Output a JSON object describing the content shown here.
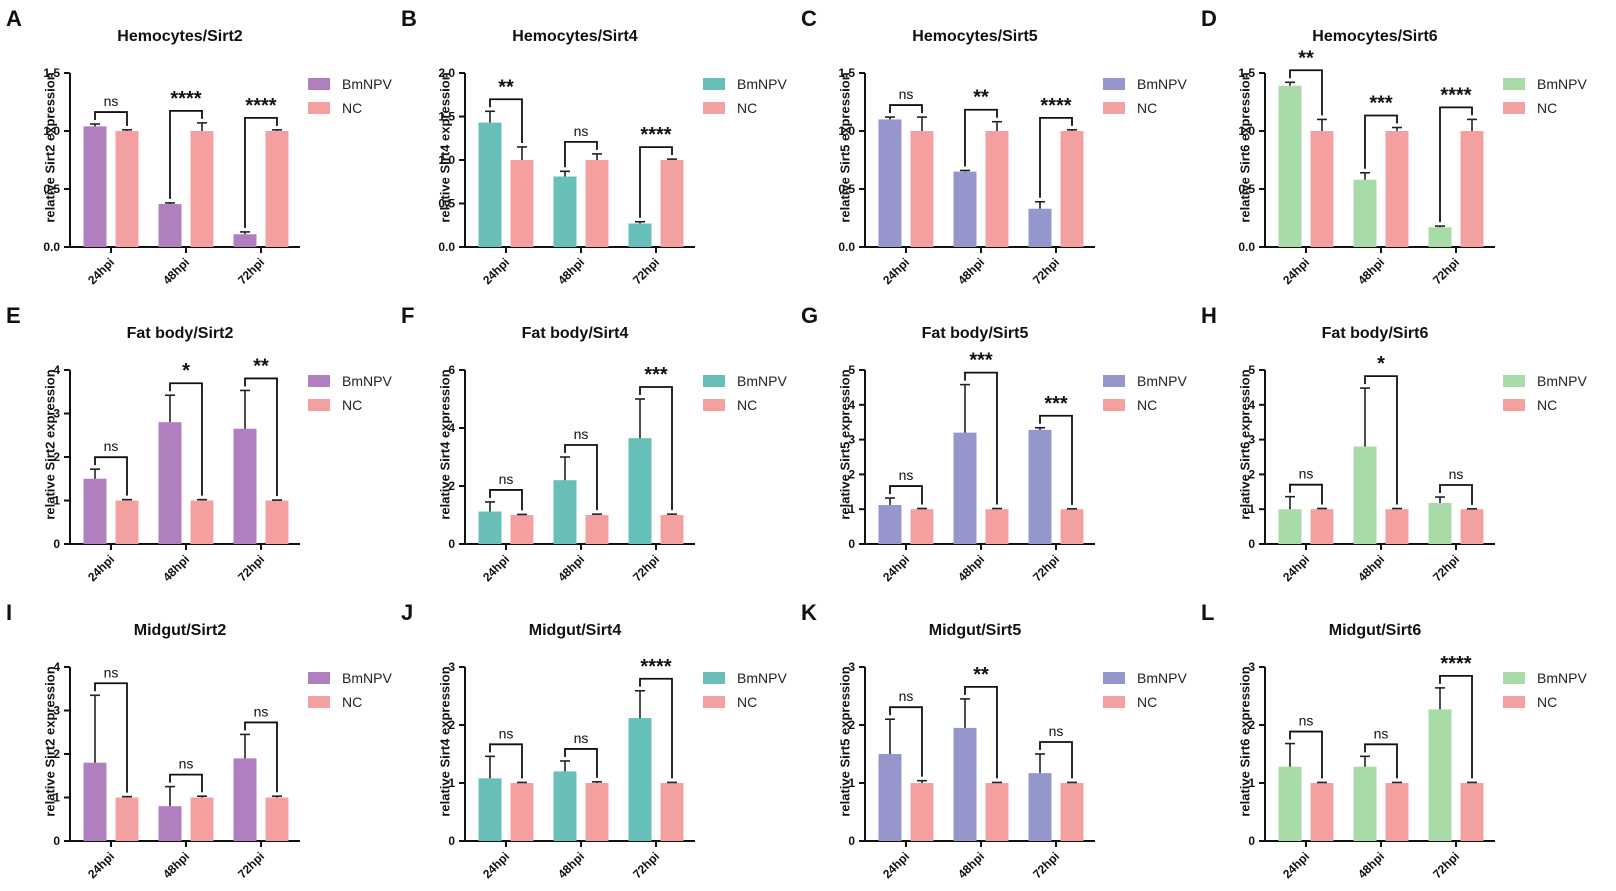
{
  "figure": {
    "legend": [
      "BmNPV",
      "NC"
    ],
    "colors": {
      "Sirt2": "#b17fbf",
      "Sirt4": "#67bfb8",
      "Sirt5": "#9597cc",
      "Sirt6": "#a9dba9",
      "NC": "#f5a0a0"
    }
  },
  "chart_data": [
    {
      "letter": "A",
      "title": "Hemocytes/Sirt2",
      "type": "bar",
      "gene": "Sirt2",
      "ylabel": "relative Sirt2 expression",
      "categories": [
        "24hpi",
        "48hpi",
        "72hpi"
      ],
      "ylim": [
        0,
        1.5
      ],
      "yticks": [
        "0.0",
        "0.5",
        "1.0",
        "1.5"
      ],
      "series": [
        {
          "name": "BmNPV",
          "values": [
            1.04,
            0.37,
            0.11
          ],
          "errors": [
            0.02,
            0.01,
            0.02
          ]
        },
        {
          "name": "NC",
          "values": [
            1.0,
            1.0,
            1.0
          ],
          "errors": [
            0.01,
            0.07,
            0.01
          ]
        }
      ],
      "significance": [
        "ns",
        "****",
        "****"
      ]
    },
    {
      "letter": "B",
      "title": "Hemocytes/Sirt4",
      "type": "bar",
      "gene": "Sirt4",
      "ylabel": "relative Sirt4 expression",
      "categories": [
        "24hpi",
        "48hpi",
        "72hpi"
      ],
      "ylim": [
        0,
        2.0
      ],
      "yticks": [
        "0.0",
        "0.5",
        "1.0",
        "1.5",
        "2.0"
      ],
      "series": [
        {
          "name": "BmNPV",
          "values": [
            1.43,
            0.81,
            0.27
          ],
          "errors": [
            0.13,
            0.06,
            0.02
          ]
        },
        {
          "name": "NC",
          "values": [
            1.0,
            1.0,
            1.0
          ],
          "errors": [
            0.15,
            0.07,
            0.01
          ]
        }
      ],
      "significance": [
        "**",
        "ns",
        "****"
      ]
    },
    {
      "letter": "C",
      "title": "Hemocytes/Sirt5",
      "type": "bar",
      "gene": "Sirt5",
      "ylabel": "relative Sirt5 expression",
      "categories": [
        "24hpi",
        "48hpi",
        "72hpi"
      ],
      "ylim": [
        0,
        1.5
      ],
      "yticks": [
        "0.0",
        "0.5",
        "1.0",
        "1.5"
      ],
      "series": [
        {
          "name": "BmNPV",
          "values": [
            1.1,
            0.65,
            0.33
          ],
          "errors": [
            0.02,
            0.01,
            0.06
          ]
        },
        {
          "name": "NC",
          "values": [
            1.0,
            1.0,
            1.0
          ],
          "errors": [
            0.12,
            0.08,
            0.01
          ]
        }
      ],
      "significance": [
        "ns",
        "**",
        "****"
      ]
    },
    {
      "letter": "D",
      "title": "Hemocytes/Sirt6",
      "type": "bar",
      "gene": "Sirt6",
      "ylabel": "relative Sirt6 expression",
      "categories": [
        "24hpi",
        "48hpi",
        "72hpi"
      ],
      "ylim": [
        0,
        1.5
      ],
      "yticks": [
        "0.0",
        "0.5",
        "1.0",
        "1.5"
      ],
      "series": [
        {
          "name": "BmNPV",
          "values": [
            1.39,
            0.58,
            0.17
          ],
          "errors": [
            0.03,
            0.06,
            0.01
          ]
        },
        {
          "name": "NC",
          "values": [
            1.0,
            1.0,
            1.0
          ],
          "errors": [
            0.1,
            0.03,
            0.1
          ]
        }
      ],
      "significance": [
        "**",
        "***",
        "****"
      ]
    },
    {
      "letter": "E",
      "title": "Fat body/Sirt2",
      "type": "bar",
      "gene": "Sirt2",
      "ylabel": "relative Sirt2 expression",
      "categories": [
        "24hpi",
        "48hpi",
        "72hpi"
      ],
      "ylim": [
        0,
        4
      ],
      "yticks": [
        "0",
        "1",
        "2",
        "3",
        "4"
      ],
      "series": [
        {
          "name": "BmNPV",
          "values": [
            1.5,
            2.8,
            2.65
          ],
          "errors": [
            0.22,
            0.62,
            0.88
          ]
        },
        {
          "name": "NC",
          "values": [
            1.0,
            1.0,
            1.0
          ],
          "errors": [
            0.02,
            0.02,
            0.01
          ]
        }
      ],
      "significance": [
        "ns",
        "*",
        "**"
      ]
    },
    {
      "letter": "F",
      "title": "Fat body/Sirt4",
      "type": "bar",
      "gene": "Sirt4",
      "ylabel": "relative Sirt4 expression",
      "categories": [
        "24hpi",
        "48hpi",
        "72hpi"
      ],
      "ylim": [
        0,
        6
      ],
      "yticks": [
        "0",
        "2",
        "4",
        "6"
      ],
      "series": [
        {
          "name": "BmNPV",
          "values": [
            1.12,
            2.2,
            3.65
          ],
          "errors": [
            0.33,
            0.8,
            1.35
          ]
        },
        {
          "name": "NC",
          "values": [
            1.0,
            1.0,
            1.0
          ],
          "errors": [
            0.02,
            0.03,
            0.03
          ]
        }
      ],
      "significance": [
        "ns",
        "ns",
        "***"
      ]
    },
    {
      "letter": "G",
      "title": "Fat body/Sirt5",
      "type": "bar",
      "gene": "Sirt5",
      "ylabel": "relative Sirt5 expression",
      "categories": [
        "24hpi",
        "48hpi",
        "72hpi"
      ],
      "ylim": [
        0,
        5
      ],
      "yticks": [
        "0",
        "1",
        "2",
        "3",
        "4",
        "5"
      ],
      "series": [
        {
          "name": "BmNPV",
          "values": [
            1.12,
            3.2,
            3.28
          ],
          "errors": [
            0.2,
            1.38,
            0.06
          ]
        },
        {
          "name": "NC",
          "values": [
            1.0,
            1.0,
            1.0
          ],
          "errors": [
            0.02,
            0.02,
            0.01
          ]
        }
      ],
      "significance": [
        "ns",
        "***",
        "***"
      ]
    },
    {
      "letter": "H",
      "title": "Fat body/Sirt6",
      "type": "bar",
      "gene": "Sirt6",
      "ylabel": "relative Sirt6 expression",
      "categories": [
        "24hpi",
        "48hpi",
        "72hpi"
      ],
      "ylim": [
        0,
        5
      ],
      "yticks": [
        "0",
        "1",
        "2",
        "3",
        "4",
        "5"
      ],
      "series": [
        {
          "name": "BmNPV",
          "values": [
            1.0,
            2.8,
            1.18
          ],
          "errors": [
            0.36,
            1.68,
            0.17
          ]
        },
        {
          "name": "NC",
          "values": [
            1.0,
            1.0,
            1.0
          ],
          "errors": [
            0.02,
            0.02,
            0.01
          ]
        }
      ],
      "significance": [
        "ns",
        "*",
        "ns"
      ]
    },
    {
      "letter": "I",
      "title": "Midgut/Sirt2",
      "type": "bar",
      "gene": "Sirt2",
      "ylabel": "relative Sirt2 expression",
      "categories": [
        "24hpi",
        "48hpi",
        "72hpi"
      ],
      "ylim": [
        0,
        4
      ],
      "yticks": [
        "0",
        "1",
        "2",
        "3",
        "4"
      ],
      "series": [
        {
          "name": "BmNPV",
          "values": [
            1.8,
            0.8,
            1.9
          ],
          "errors": [
            1.55,
            0.45,
            0.55
          ]
        },
        {
          "name": "NC",
          "values": [
            1.0,
            1.0,
            1.0
          ],
          "errors": [
            0.02,
            0.03,
            0.03
          ]
        }
      ],
      "significance": [
        "ns",
        "ns",
        "ns"
      ]
    },
    {
      "letter": "J",
      "title": "Midgut/Sirt4",
      "type": "bar",
      "gene": "Sirt4",
      "ylabel": "relative Sirt4 expression",
      "categories": [
        "24hpi",
        "48hpi",
        "72hpi"
      ],
      "ylim": [
        0,
        3
      ],
      "yticks": [
        "0",
        "1",
        "2",
        "3"
      ],
      "series": [
        {
          "name": "BmNPV",
          "values": [
            1.08,
            1.2,
            2.12
          ],
          "errors": [
            0.38,
            0.18,
            0.47
          ]
        },
        {
          "name": "NC",
          "values": [
            1.0,
            1.0,
            1.0
          ],
          "errors": [
            0.01,
            0.02,
            0.01
          ]
        }
      ],
      "significance": [
        "ns",
        "ns",
        "****"
      ]
    },
    {
      "letter": "K",
      "title": "Midgut/Sirt5",
      "type": "bar",
      "gene": "Sirt5",
      "ylabel": "relative Sirt5 expression",
      "categories": [
        "24hpi",
        "48hpi",
        "72hpi"
      ],
      "ylim": [
        0,
        3
      ],
      "yticks": [
        "0",
        "1",
        "2",
        "3"
      ],
      "series": [
        {
          "name": "BmNPV",
          "values": [
            1.5,
            1.95,
            1.17
          ],
          "errors": [
            0.6,
            0.5,
            0.33
          ]
        },
        {
          "name": "NC",
          "values": [
            1.0,
            1.0,
            1.0
          ],
          "errors": [
            0.04,
            0.01,
            0.01
          ]
        }
      ],
      "significance": [
        "ns",
        "**",
        "ns"
      ]
    },
    {
      "letter": "L",
      "title": "Midgut/Sirt6",
      "type": "bar",
      "gene": "Sirt6",
      "ylabel": "relative Sirt6 expression",
      "categories": [
        "24hpi",
        "48hpi",
        "72hpi"
      ],
      "ylim": [
        0,
        3
      ],
      "yticks": [
        "0",
        "1",
        "2",
        "3"
      ],
      "series": [
        {
          "name": "BmNPV",
          "values": [
            1.28,
            1.28,
            2.27
          ],
          "errors": [
            0.4,
            0.18,
            0.37
          ]
        },
        {
          "name": "NC",
          "values": [
            1.0,
            1.0,
            1.0
          ],
          "errors": [
            0.01,
            0.01,
            0.01
          ]
        }
      ],
      "significance": [
        "ns",
        "ns",
        "****"
      ]
    }
  ]
}
